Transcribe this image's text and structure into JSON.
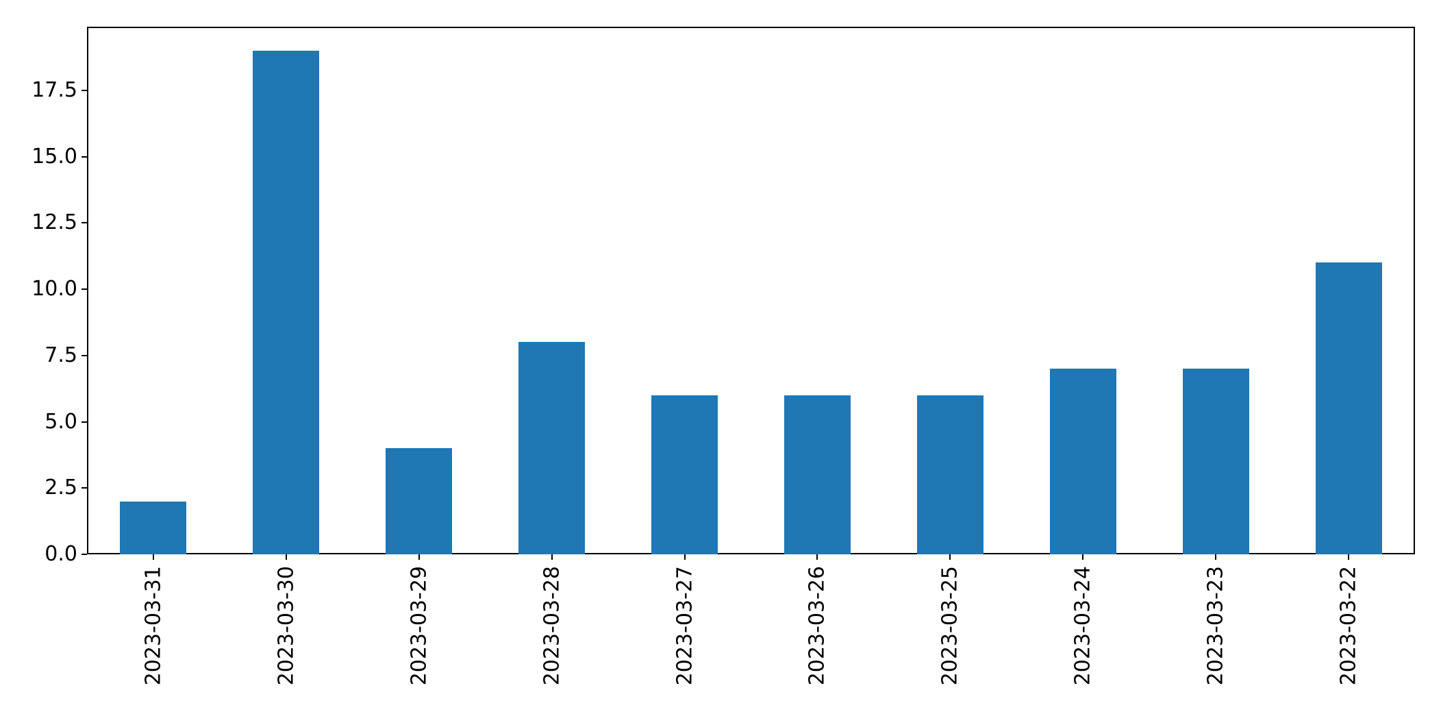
{
  "chart_data": {
    "type": "bar",
    "title": "",
    "xlabel": "",
    "ylabel": "",
    "categories": [
      "2023-03-31",
      "2023-03-30",
      "2023-03-29",
      "2023-03-28",
      "2023-03-27",
      "2023-03-26",
      "2023-03-25",
      "2023-03-24",
      "2023-03-23",
      "2023-03-22"
    ],
    "values": [
      2,
      19,
      4,
      8,
      6,
      6,
      6,
      7,
      7,
      11
    ],
    "yticks": [
      0.0,
      2.5,
      5.0,
      7.5,
      10.0,
      12.5,
      15.0,
      17.5
    ],
    "ytick_labels": [
      "0.0",
      "2.5",
      "5.0",
      "7.5",
      "10.0",
      "12.5",
      "15.0",
      "17.5"
    ],
    "ylim": [
      0,
      19.9
    ],
    "bar_color": "#1f77b4",
    "axis_color": "#000000",
    "background_color": "#ffffff",
    "grid": false,
    "legend": null,
    "x_tick_rotation": 90,
    "bar_relative_width": 0.5
  }
}
